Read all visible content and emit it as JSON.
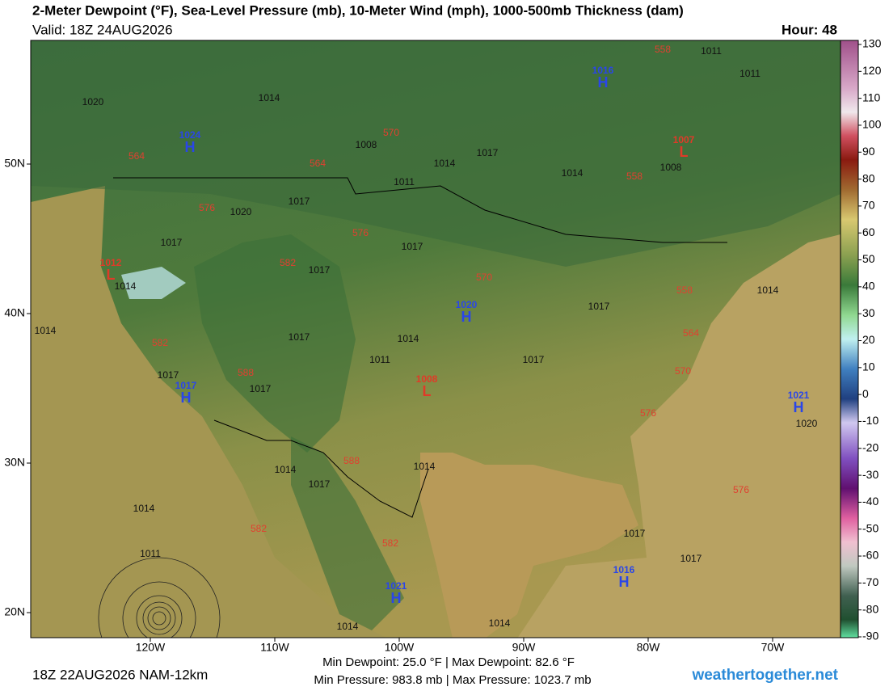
{
  "header": {
    "title": "2-Meter Dewpoint (°F), Sea-Level Pressure (mb), 10-Meter Wind (mph), 1000-500mb Thickness (dam)",
    "valid": "Valid: 18Z 24AUG2026",
    "hour": "Hour: 48"
  },
  "colorbar": {
    "ticks": [
      130,
      120,
      110,
      100,
      90,
      80,
      70,
      60,
      50,
      40,
      30,
      20,
      10,
      0,
      -10,
      -20,
      -30,
      -40,
      -50,
      -60,
      -70,
      -80,
      -90
    ]
  },
  "axes": {
    "longitudes": [
      "120W",
      "110W",
      "100W",
      "90W",
      "80W",
      "70W"
    ],
    "latitudes": [
      "50N",
      "40N",
      "30N",
      "20N"
    ]
  },
  "pressure_centers": [
    {
      "type": "H",
      "value": "1024"
    },
    {
      "type": "L",
      "value": "1012"
    },
    {
      "type": "H",
      "value": "1017"
    },
    {
      "type": "H",
      "value": "1020"
    },
    {
      "type": "L",
      "value": "1008"
    },
    {
      "type": "H",
      "value": "1016"
    },
    {
      "type": "L",
      "value": "1007"
    },
    {
      "type": "H",
      "value": "1021"
    },
    {
      "type": "H",
      "value": "1016"
    },
    {
      "type": "H",
      "value": "1021"
    }
  ],
  "isobar_labels": [
    "1020",
    "1014",
    "1008",
    "1011",
    "1017",
    "1020",
    "1017",
    "1014",
    "1017",
    "1017",
    "1014",
    "1011",
    "1017",
    "1017",
    "1014",
    "1014",
    "1017",
    "1011",
    "1011",
    "1014",
    "1008",
    "1020",
    "1014",
    "1011",
    "1014",
    "1017",
    "1014",
    "1017",
    "1017",
    "1014",
    "1014",
    "1014",
    "1017",
    "1017",
    "1017"
  ],
  "thickness_labels": [
    "558",
    "570",
    "564",
    "564",
    "576",
    "576",
    "582",
    "570",
    "558",
    "558",
    "564",
    "570",
    "576",
    "576",
    "582",
    "588",
    "588",
    "582",
    "582"
  ],
  "footer": {
    "run": "18Z 22AUG2026 NAM-12km",
    "dewpoint_range": "Min Dewpoint:  25.0 °F | Max Dewpoint:  82.6 °F",
    "pressure_range": "Min Pressure: 983.8 mb | Max Pressure: 1023.7 mb",
    "site": "weathertogether.net"
  }
}
